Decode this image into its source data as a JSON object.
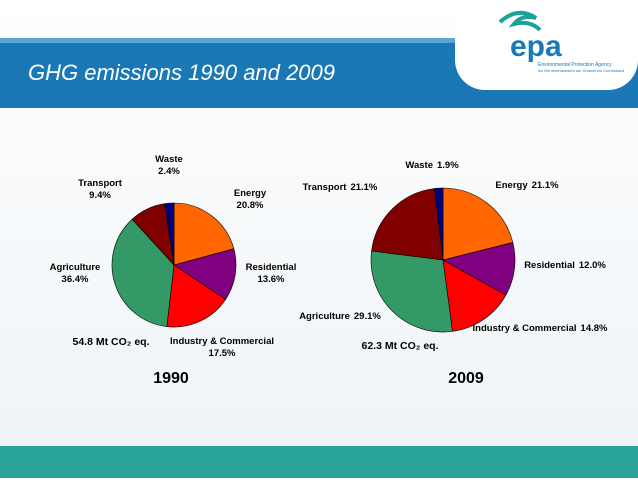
{
  "title": "GHG emissions 1990 and 2009",
  "logo": {
    "name": "epa",
    "line1": "Environmental Protection Agency",
    "line2": "An Ghníomhaireacht um Chaomhnú Comhshaoil"
  },
  "chart_data": [
    {
      "type": "pie",
      "year": "1990",
      "total_label": "54.8 Mt CO₂ eq.",
      "categories": [
        "Energy",
        "Residential",
        "Industry & Commercial",
        "Agriculture",
        "Transport",
        "Waste"
      ],
      "values": [
        20.8,
        13.6,
        17.5,
        36.4,
        9.4,
        2.4
      ],
      "value_labels": [
        "20.8%",
        "13.6%",
        "17.5%",
        "36.4%",
        "9.4%",
        "2.4%"
      ],
      "colors": [
        "#ff6600",
        "#800080",
        "#ff0000",
        "#339966",
        "#800000",
        "#000080"
      ]
    },
    {
      "type": "pie",
      "year": "2009",
      "total_label": "62.3 Mt CO₂ eq.",
      "categories": [
        "Energy",
        "Residential",
        "Industry & Commercial",
        "Agriculture",
        "Transport",
        "Waste"
      ],
      "values": [
        21.1,
        12.0,
        14.8,
        29.1,
        21.1,
        1.9
      ],
      "value_labels": [
        "21.1%",
        "12.0%",
        "14.8%",
        "29.1%",
        "21.1%",
        "1.9%"
      ],
      "colors": [
        "#ff6600",
        "#800080",
        "#ff0000",
        "#339966",
        "#800000",
        "#000080"
      ]
    }
  ]
}
